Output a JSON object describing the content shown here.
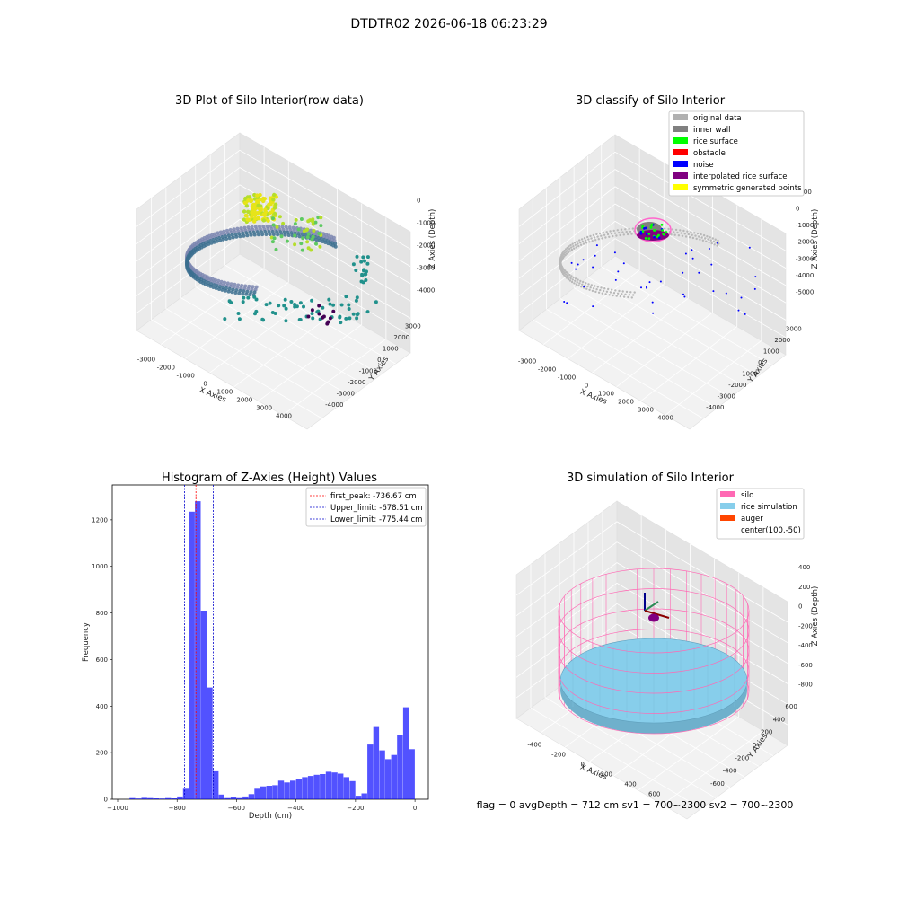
{
  "figure": {
    "suptitle": "DTDTR02 2026-06-18 06:23:29",
    "status_line": "flag = 0     avgDepth = 712 cm  sv1 = 700~2300  sv2 = 700~2300"
  },
  "colors": {
    "hist_bar": "#0000ff",
    "first_peak": "#ff0000",
    "limit_lines": "#0000cc",
    "silo": "#ff69b4",
    "rice_simulation": "#87ceeb",
    "auger": "#ff4500"
  },
  "chart_data": [
    {
      "type": "scatter",
      "title": "3D Plot of Silo Interior(row data)",
      "xlabel": "X Axies",
      "ylabel": "Y Axies",
      "zlabel": "Z Axies (Depth)",
      "x_ticks": [
        "-3000",
        "-2000",
        "-1000",
        "0",
        "1000",
        "2000",
        "3000",
        "4000"
      ],
      "y_ticks": [
        "-4000",
        "-3000",
        "-2000",
        "-1000",
        "0",
        "1000",
        "2000",
        "3000"
      ],
      "z_ticks": [
        "-4000",
        "-3000",
        "-2000",
        "-1000",
        "0"
      ],
      "colormap": "viridis"
    },
    {
      "type": "scatter",
      "title": "3D classify of Silo Interior",
      "xlabel": "X Axies",
      "ylabel": "Y Axies",
      "zlabel": "Z Axies (Depth)",
      "x_ticks": [
        "-3000",
        "-2000",
        "-1000",
        "0",
        "1000",
        "2000",
        "3000",
        "4000"
      ],
      "y_ticks": [
        "-4000",
        "-3000",
        "-2000",
        "-1000",
        "0",
        "1000",
        "2000",
        "3000"
      ],
      "z_ticks": [
        "-5000",
        "-4000",
        "-3000",
        "-2000",
        "-1000",
        "0",
        "1000"
      ],
      "legend_position": "top-right",
      "legend": [
        {
          "label": "original data",
          "color": "#b0b0b0"
        },
        {
          "label": "inner wall",
          "color": "#808080"
        },
        {
          "label": "rice surface",
          "color": "#00ff00"
        },
        {
          "label": "obstacle",
          "color": "#ff0000"
        },
        {
          "label": "noise",
          "color": "#0000ff"
        },
        {
          "label": "interpolated rice surface",
          "color": "#800080"
        },
        {
          "label": "symmetric generated points",
          "color": "#ffff00"
        }
      ]
    },
    {
      "type": "bar",
      "title": "Histogram of Z-Axies (Height) Values",
      "xlabel": "Depth (cm)",
      "ylabel": "Frequency",
      "xlim": [
        -1000,
        0
      ],
      "ylim": [
        0,
        1300
      ],
      "x_ticks": [
        -1000,
        -800,
        -600,
        -400,
        -200,
        0
      ],
      "y_ticks": [
        0,
        200,
        400,
        600,
        800,
        1000,
        1200
      ],
      "bin_width": 20,
      "bins": [
        [
          -960,
          5
        ],
        [
          -940,
          3
        ],
        [
          -920,
          6
        ],
        [
          -900,
          5
        ],
        [
          -880,
          4
        ],
        [
          -860,
          3
        ],
        [
          -840,
          5
        ],
        [
          -820,
          4
        ],
        [
          -800,
          12
        ],
        [
          -780,
          45
        ],
        [
          -760,
          1235
        ],
        [
          -740,
          1280
        ],
        [
          -720,
          810
        ],
        [
          -700,
          480
        ],
        [
          -680,
          120
        ],
        [
          -660,
          20
        ],
        [
          -640,
          5
        ],
        [
          -620,
          8
        ],
        [
          -600,
          5
        ],
        [
          -580,
          12
        ],
        [
          -560,
          22
        ],
        [
          -540,
          45
        ],
        [
          -520,
          55
        ],
        [
          -500,
          58
        ],
        [
          -480,
          60
        ],
        [
          -460,
          80
        ],
        [
          -440,
          72
        ],
        [
          -420,
          80
        ],
        [
          -400,
          88
        ],
        [
          -380,
          95
        ],
        [
          -360,
          100
        ],
        [
          -340,
          105
        ],
        [
          -320,
          108
        ],
        [
          -300,
          118
        ],
        [
          -280,
          115
        ],
        [
          -260,
          110
        ],
        [
          -240,
          95
        ],
        [
          -220,
          78
        ],
        [
          -200,
          15
        ],
        [
          -180,
          25
        ],
        [
          -160,
          235
        ],
        [
          -140,
          310
        ],
        [
          -120,
          210
        ],
        [
          -100,
          172
        ],
        [
          -80,
          190
        ],
        [
          -60,
          275
        ],
        [
          -40,
          395
        ],
        [
          -20,
          215
        ]
      ],
      "lines": [
        {
          "label": "first_peak: -736.67 cm",
          "x": -736.67,
          "color": "#ff0000"
        },
        {
          "label": "Upper_limit: -678.51 cm",
          "x": -678.51,
          "color": "#0000cc"
        },
        {
          "label": "Lower_limit: -775.44 cm",
          "x": -775.44,
          "color": "#0000cc"
        }
      ],
      "legend_position": "top-right"
    },
    {
      "type": "scatter",
      "title": "3D simulation of Silo Interior",
      "xlabel": "X Axies",
      "ylabel": "Y Axies",
      "zlabel": "Z Axies (Depth)",
      "x_ticks": [
        "-400",
        "-200",
        "0",
        "200",
        "400",
        "600"
      ],
      "y_ticks": [
        "-600",
        "-400",
        "-200",
        "0",
        "200",
        "400",
        "600"
      ],
      "z_ticks": [
        "-800",
        "-600",
        "-400",
        "-200",
        "0",
        "200",
        "400"
      ],
      "legend_position": "top-right",
      "legend": [
        {
          "label": "silo",
          "color": "#ff69b4"
        },
        {
          "label": "rice simulation",
          "color": "#87ceeb"
        },
        {
          "label": "auger",
          "color": "#ff4500"
        },
        {
          "label": "center(100,-50)",
          "color": ""
        }
      ]
    }
  ]
}
